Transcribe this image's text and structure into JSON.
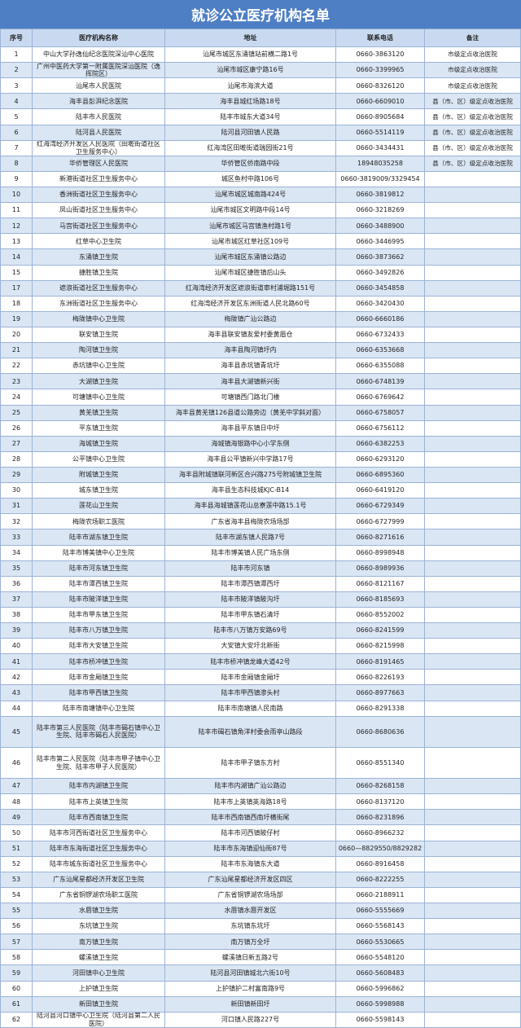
{
  "header": {
    "title": "就诊公立医疗机构名单"
  },
  "table": {
    "columns": [
      "序号",
      "医疗机构名称",
      "地址",
      "联系电话",
      "备注"
    ],
    "rows": [
      {
        "no": 1,
        "name": "中山大学孙逸仙纪念医院深汕中心医院",
        "address": "汕尾市城区东涌镇站前横二路1号",
        "phone": "0660-3863120",
        "remark": "市级定点收治医院"
      },
      {
        "no": 2,
        "name": "广州中医药大学第一附属医院深汕医院（逸挥院区）",
        "address": "汕尾市城区康宁路16号",
        "phone": "0660-3399965",
        "remark": "市级定点收治医院"
      },
      {
        "no": 3,
        "name": "汕尾市人民医院",
        "address": "汕尾市海滨大道",
        "phone": "0660-8326120",
        "remark": "市级定点收治医院"
      },
      {
        "no": 4,
        "name": "海丰县彭湃纪念医院",
        "address": "海丰县城红场路18号",
        "phone": "0660-6609010",
        "remark": "县（市、区）级定点收治医院"
      },
      {
        "no": 5,
        "name": "陆丰市人民医院",
        "address": "陆丰市城东大道34号",
        "phone": "0660-8905684",
        "remark": "县（市、区）级定点收治医院"
      },
      {
        "no": 6,
        "name": "陆河县人民医院",
        "address": "陆河县河田镇人民路",
        "phone": "0660-5514119",
        "remark": "县（市、区）级定点收治医院"
      },
      {
        "no": 7,
        "name": "红海湾经济开发区人民医院（田墘街道社区卫生服务中心）",
        "address": "红海湾区田墘街道瑞园街21号",
        "phone": "0660-3434431",
        "remark": "县（市、区）级定点收治医院"
      },
      {
        "no": 8,
        "name": "华侨管理区人民医院",
        "address": "华侨管区侨南路中段",
        "phone": "18948035258",
        "remark": "县（市、区）级定点收治医院"
      },
      {
        "no": 9,
        "name": "新港街道社区卫生服务中心",
        "address": "城区鱼村中路106号",
        "phone": "0660-3819009/3329454"
      },
      {
        "no": 10,
        "name": "香洲街道社区卫生服务中心",
        "address": "汕尾市城区城南路424号",
        "phone": "0660-3819812"
      },
      {
        "no": 11,
        "name": "凤山街道社区卫生服务中心",
        "address": "汕尾市城区文明路中段14号",
        "phone": "0660-3218269"
      },
      {
        "no": 12,
        "name": "马宫街道社区卫生服务中心",
        "address": "汕尾市城区马宫镇渔村路1号",
        "phone": "0660-3488900"
      },
      {
        "no": 13,
        "name": "红草中心卫生院",
        "address": "汕尾市城区红草社区109号",
        "phone": "0660-3446995"
      },
      {
        "no": 14,
        "name": "东涌镇卫生院",
        "address": "汕尾市城区东涌镇公路边",
        "phone": "0660-3873662"
      },
      {
        "no": 15,
        "name": "捷胜镇卫生院",
        "address": "汕尾市城区捷胜镇后山头",
        "phone": "0660-3492826"
      },
      {
        "no": 17,
        "name": "遮浪街道社区卫生服务中心",
        "address": "红海湾经济开发区遮浪街道审村浦堀路151号",
        "phone": "0660-3454858"
      },
      {
        "no": 18,
        "name": "东洲街道社区卫生服务中心",
        "address": "红海湾经济开发区东洲街道人民北路60号",
        "phone": "0660-3420430"
      },
      {
        "no": 19,
        "name": "梅陇镇中心卫生院",
        "address": "梅陇镇广汕公路边",
        "phone": "0660-6660186"
      },
      {
        "no": 20,
        "name": "联安镇卫生院",
        "address": "海丰县联安镇友爱村委黄眉仓",
        "phone": "0660-6732433"
      },
      {
        "no": 21,
        "name": "陶河镇卫生院",
        "address": "海丰县陶河镇圩内",
        "phone": "0660-6353668"
      },
      {
        "no": 22,
        "name": "赤坑镇中心卫生院",
        "address": "海丰县赤坑镇青坑圩",
        "phone": "0660-6355088"
      },
      {
        "no": 23,
        "name": "大湖镇卫生院",
        "address": "海丰县大湖镇新兴街",
        "phone": "0660-6748139"
      },
      {
        "no": 24,
        "name": "可塘镇中心卫生院",
        "address": "可塘镇西门路北门楼",
        "phone": "0660-6769642"
      },
      {
        "no": 25,
        "name": "黄羌镇卫生院",
        "address": "海丰县黄羌镇126县道公路旁边（黄羌中学斜对面）",
        "phone": "0660-6758057"
      },
      {
        "no": 26,
        "name": "平东镇卫生院",
        "address": "海丰县平东镇日中圩",
        "phone": "0660-6756112"
      },
      {
        "no": 27,
        "name": "海城镇卫生院",
        "address": "海城镇海银路中心小学东侧",
        "phone": "0660-6382253"
      },
      {
        "no": 28,
        "name": "公平镇中心卫生院",
        "address": "海丰县公平镇新兴中学路17号",
        "phone": "0660-6293120"
      },
      {
        "no": 29,
        "name": "附城镇卫生院",
        "address": "海丰县附城镇联河新区合兴路275号附城镇卫生院",
        "phone": "0660-6895360"
      },
      {
        "no": 30,
        "name": "城东镇卫生院",
        "address": "海丰县生态科技城KJC-B14",
        "phone": "0660-6419120"
      },
      {
        "no": 31,
        "name": "莲花山卫生院",
        "address": "海丰县海城镇莲花山总寮莲中路15.1号",
        "phone": "0660-6729349"
      },
      {
        "no": 32,
        "name": "梅陇农场职工医院",
        "address": "广东省海丰县梅陇农场场部",
        "phone": "0660-6727999"
      },
      {
        "no": 33,
        "name": "陆丰市湖东镇卫生院",
        "address": "陆丰市湖东镇人民路7号",
        "phone": "0660-8271616"
      },
      {
        "no": 34,
        "name": "陆丰市博美镇中心卫生院",
        "address": "陆丰市博美镇人民广场东侧",
        "phone": "0660-8998948"
      },
      {
        "no": 35,
        "name": "陆丰市河东镇卫生院",
        "address": "陆丰市河东镇",
        "phone": "0660-8989936"
      },
      {
        "no": 36,
        "name": "陆丰市潭西镇卫生院",
        "address": "陆丰市潭西镇潭西圩",
        "phone": "0660-8121167"
      },
      {
        "no": 37,
        "name": "陆丰市陂洋镇卫生院",
        "address": "陆丰市陂洋镇陂沟圩",
        "phone": "0660-8185693"
      },
      {
        "no": 38,
        "name": "陆丰市甲东镇卫生院",
        "address": "陆丰市甲东镇石清圩",
        "phone": "0660-8552002"
      },
      {
        "no": 39,
        "name": "陆丰市八万镇卫生院",
        "address": "陆丰市八万镇万安路69号",
        "phone": "0660-8241599"
      },
      {
        "no": 40,
        "name": "陆丰市大安镇卫生院",
        "address": "大安镇大安圩北新街",
        "phone": "0660-8215998"
      },
      {
        "no": 41,
        "name": "陆丰市桥冲镇卫生院",
        "address": "陆丰市桥冲镇龙峰大道42号",
        "phone": "0660-8191465"
      },
      {
        "no": 42,
        "name": "陆丰市金厢镇卫生院",
        "address": "陆丰市金厢镇金厢圩",
        "phone": "0660-8226193"
      },
      {
        "no": 43,
        "name": "陆丰市甲西镇卫生院",
        "address": "陆丰市甲西镇渗头村",
        "phone": "0660-8977663"
      },
      {
        "no": 44,
        "name": "陆丰市南塘镇中心卫生院",
        "address": "陆丰市南塘镇人民南路",
        "phone": "0660-8291338"
      },
      {
        "no": 45,
        "name": "陆丰市第三人民医院（陆丰市碣石镇中心卫生院、陆丰市碣石人民医院）",
        "address": "陆丰市碣石镇角洋村委会雨亭山路段",
        "phone": "0660-8680636"
      },
      {
        "no": 46,
        "name": "陆丰市第二人民医院（陆丰市甲子镇中心卫生院、陆丰市甲子人民医院）",
        "address": "陆丰市甲子镇东方村",
        "phone": "0660-8551340"
      },
      {
        "no": 47,
        "name": "陆丰市内湖镇卫生院",
        "address": "陆丰市内湖镇广汕公路边",
        "phone": "0660-8268158"
      },
      {
        "no": 48,
        "name": "陆丰市上英镇卫生院",
        "address": "陆丰市上英镇英海路18号",
        "phone": "0660-8137120"
      },
      {
        "no": 49,
        "name": "陆丰市西南镇卫生院",
        "address": "陆丰市西南镇西南圩横街尾",
        "phone": "0660-8231896"
      },
      {
        "no": 50,
        "name": "陆丰市河西街道社区卫生服务中心",
        "address": "陆丰市河西镇陂仔村",
        "phone": "0660-8966232"
      },
      {
        "no": 51,
        "name": "陆丰市东海街道社区卫生服务中心",
        "address": "陆丰市东海镇迎仙街87号",
        "phone": "0660—8829550/8829282"
      },
      {
        "no": 52,
        "name": "陆丰市城东街道社区卫生服务中心",
        "address": "陆丰市东海镇东大道",
        "phone": "0660-8916458"
      },
      {
        "no": 53,
        "name": "广东汕尾星都经济开发区卫生院",
        "address": "广东汕尾星都经济开发区四区",
        "phone": "0660-8222255"
      },
      {
        "no": 54,
        "name": "广东省铜锣湖农场职工医院",
        "address": "广东省铜锣湖农场场部",
        "phone": "0660-2188911"
      },
      {
        "no": 55,
        "name": "水唇镇卫生院",
        "address": "水唇镇水唇开发区",
        "phone": "0660-5555669"
      },
      {
        "no": 56,
        "name": "东坑镇卫生院",
        "address": "东坑镇东坑圩",
        "phone": "0660-5568143"
      },
      {
        "no": 57,
        "name": "南万镇卫生院",
        "address": "南万镇万全圩",
        "phone": "0660-5530665"
      },
      {
        "no": 58,
        "name": "螺溪镇卫生院",
        "address": "螺溪镇日新五路2号",
        "phone": "0660-5548120"
      },
      {
        "no": 59,
        "name": "河田镇中心卫生院",
        "address": "陆河县河田镇城北六街10号",
        "phone": "0660-5608483"
      },
      {
        "no": 60,
        "name": "上护镇卫生院",
        "address": "上护镇护二村富南路9号",
        "phone": "0660-5996862"
      },
      {
        "no": 61,
        "name": "新田镇卫生院",
        "address": "新田镇新田圩",
        "phone": "0660-5998988"
      },
      {
        "no": 62,
        "name": "陆河县河口镇中心卫生院（陆河县第二人民医院）",
        "address": "河口镇人民路227号",
        "phone": "0660-5598143"
      }
    ]
  }
}
